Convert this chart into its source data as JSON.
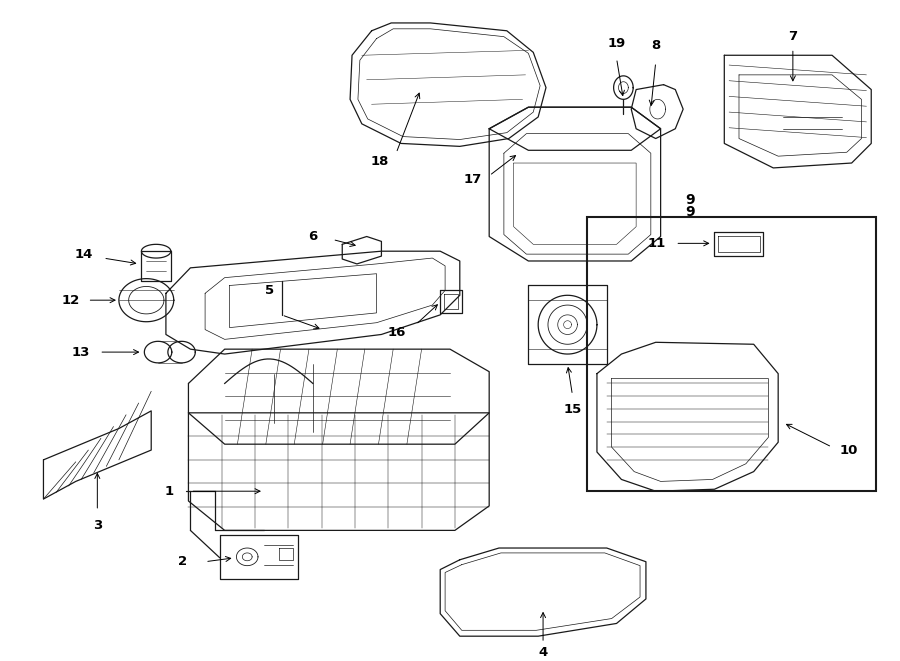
{
  "background_color": "#ffffff",
  "line_color": "#1a1a1a",
  "figure_width": 9.0,
  "figure_height": 6.61,
  "dpi": 100,
  "label_fontsize": 9.5,
  "arrow_lw": 0.7,
  "part_lw": 0.9
}
